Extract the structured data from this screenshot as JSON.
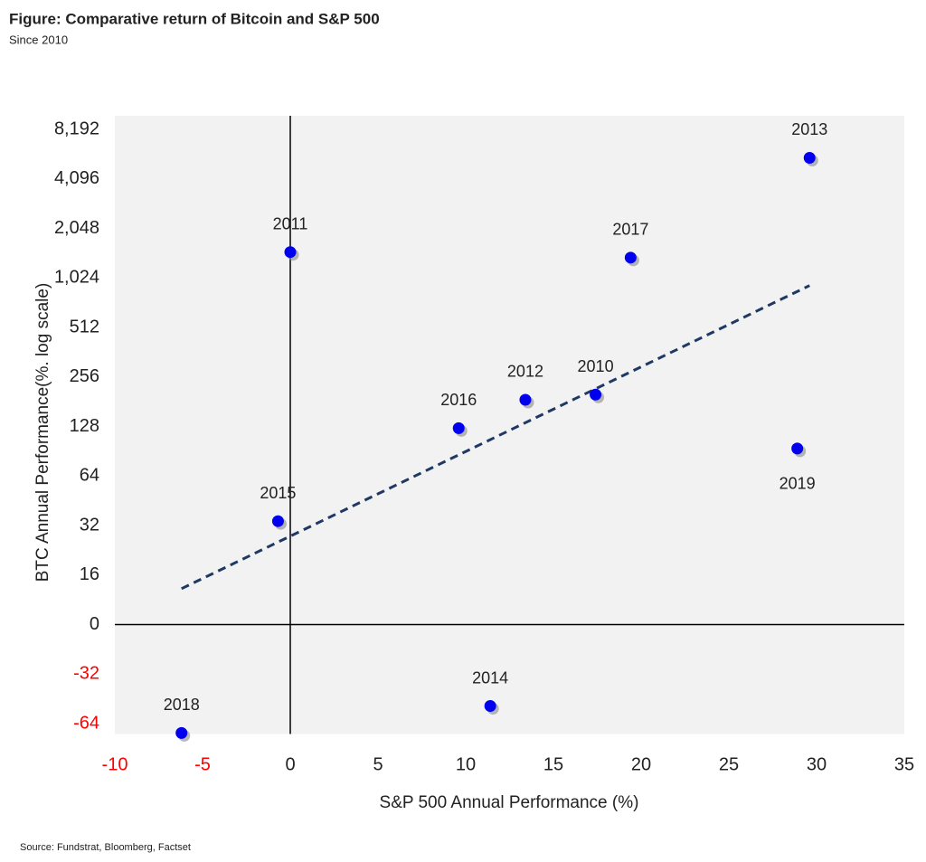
{
  "chart_data": {
    "type": "scatter",
    "title": "Figure: Comparative return of Bitcoin and S&P 500",
    "subtitle": "Since 2010",
    "source": "Source: Fundstrat, Bloomberg, Factset",
    "x_label": "S&P 500 Annual Performance (%)",
    "y_label": "BTC Annual Performance(%. log scale)",
    "xlim": [
      -10,
      35
    ],
    "xticks": [
      -10,
      -5,
      0,
      5,
      10,
      15,
      20,
      25,
      30,
      35
    ],
    "ylim": [
      -74,
      9900
    ],
    "yticks": [
      -64,
      -32,
      0,
      16,
      32,
      64,
      128,
      256,
      512,
      {
        "value": 1024,
        "label": "1,024"
      },
      {
        "value": 2048,
        "label": "2,048"
      },
      {
        "value": 4096,
        "label": "4,096"
      },
      {
        "value": 8192,
        "label": "8,192"
      }
    ],
    "y_scale": "symmetric log",
    "negative_label_color": "#ff0000",
    "point_color": "#0000ee",
    "point_labels": [
      "2010",
      "2011",
      "2012",
      "2013",
      "2014",
      "2015",
      "2016",
      "2017",
      "2018",
      "2019"
    ],
    "label_positions": [
      "above",
      "above",
      "above",
      "above",
      "above",
      "above",
      "above",
      "above",
      "above",
      "below"
    ],
    "x": [
      17.4,
      0.0,
      13.4,
      29.6,
      11.4,
      -0.7,
      9.6,
      19.4,
      -6.2,
      28.9
    ],
    "y": [
      200,
      1470,
      186,
      5500,
      -50,
      34,
      125,
      1360,
      -73,
      94
    ],
    "trendline": {
      "color": "#1f3864",
      "x": [
        -6.2,
        29.6
      ],
      "y": [
        11.6,
        920
      ]
    }
  }
}
